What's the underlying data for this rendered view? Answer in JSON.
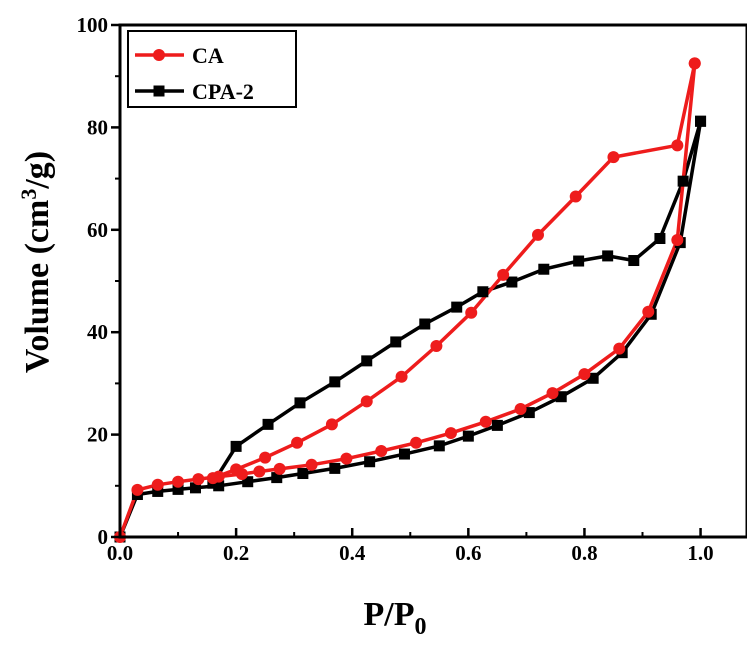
{
  "chart_data": {
    "type": "line",
    "xlabel": "P/P",
    "xlabel_sub": "0",
    "ylabel": "Volume (cm",
    "ylabel_sup": "3",
    "ylabel_end": "/g)",
    "xlim": [
      0.0,
      1.08
    ],
    "ylim": [
      0,
      100
    ],
    "xticks": [
      "0.0",
      "0.2",
      "0.4",
      "0.6",
      "0.8",
      "1.0"
    ],
    "yticks": [
      "0",
      "20",
      "40",
      "60",
      "80",
      "100"
    ],
    "grid": false,
    "legend_position": "top-left",
    "series": [
      {
        "name": "CA",
        "color": "#ee1c1c",
        "marker": "circle",
        "adsorption": [
          [
            0.0,
            0.0
          ],
          [
            0.03,
            9.2
          ],
          [
            0.065,
            10.2
          ],
          [
            0.1,
            10.8
          ],
          [
            0.135,
            11.3
          ],
          [
            0.17,
            11.8
          ],
          [
            0.21,
            12.3
          ],
          [
            0.24,
            12.8
          ],
          [
            0.275,
            13.3
          ],
          [
            0.33,
            14.1
          ],
          [
            0.39,
            15.3
          ],
          [
            0.45,
            16.8
          ],
          [
            0.51,
            18.4
          ],
          [
            0.57,
            20.3
          ],
          [
            0.63,
            22.5
          ],
          [
            0.69,
            25.0
          ],
          [
            0.745,
            28.1
          ],
          [
            0.8,
            31.8
          ],
          [
            0.86,
            36.8
          ],
          [
            0.91,
            44.0
          ],
          [
            0.96,
            58.0
          ],
          [
            0.99,
            92.5
          ]
        ],
        "desorption": [
          [
            0.99,
            92.5
          ],
          [
            0.96,
            76.5
          ],
          [
            0.85,
            74.2
          ],
          [
            0.785,
            66.5
          ],
          [
            0.72,
            59.0
          ],
          [
            0.66,
            51.2
          ],
          [
            0.605,
            43.8
          ],
          [
            0.545,
            37.3
          ],
          [
            0.485,
            31.3
          ],
          [
            0.425,
            26.5
          ],
          [
            0.365,
            22.0
          ],
          [
            0.305,
            18.4
          ],
          [
            0.25,
            15.5
          ],
          [
            0.2,
            13.2
          ],
          [
            0.16,
            11.5
          ]
        ]
      },
      {
        "name": "CPA-2",
        "color": "#000000",
        "marker": "square",
        "adsorption": [
          [
            0.0,
            0.0
          ],
          [
            0.03,
            8.3
          ],
          [
            0.065,
            8.9
          ],
          [
            0.1,
            9.3
          ],
          [
            0.13,
            9.6
          ],
          [
            0.17,
            10.0
          ],
          [
            0.22,
            10.8
          ],
          [
            0.27,
            11.6
          ],
          [
            0.315,
            12.4
          ],
          [
            0.37,
            13.4
          ],
          [
            0.43,
            14.7
          ],
          [
            0.49,
            16.2
          ],
          [
            0.55,
            17.8
          ],
          [
            0.6,
            19.7
          ],
          [
            0.65,
            21.8
          ],
          [
            0.705,
            24.3
          ],
          [
            0.76,
            27.4
          ],
          [
            0.815,
            31.0
          ],
          [
            0.865,
            36.0
          ],
          [
            0.915,
            43.5
          ],
          [
            0.965,
            57.5
          ],
          [
            1.0,
            81.2
          ]
        ],
        "desorption": [
          [
            1.0,
            81.2
          ],
          [
            0.97,
            69.5
          ],
          [
            0.93,
            58.3
          ],
          [
            0.885,
            54.0
          ],
          [
            0.84,
            54.9
          ],
          [
            0.79,
            53.9
          ],
          [
            0.73,
            52.3
          ],
          [
            0.675,
            49.8
          ],
          [
            0.625,
            47.9
          ],
          [
            0.58,
            44.9
          ],
          [
            0.525,
            41.6
          ],
          [
            0.475,
            38.1
          ],
          [
            0.425,
            34.4
          ],
          [
            0.37,
            30.3
          ],
          [
            0.31,
            26.2
          ],
          [
            0.255,
            22.0
          ],
          [
            0.2,
            17.7
          ],
          [
            0.16,
            10.5
          ]
        ]
      }
    ]
  }
}
